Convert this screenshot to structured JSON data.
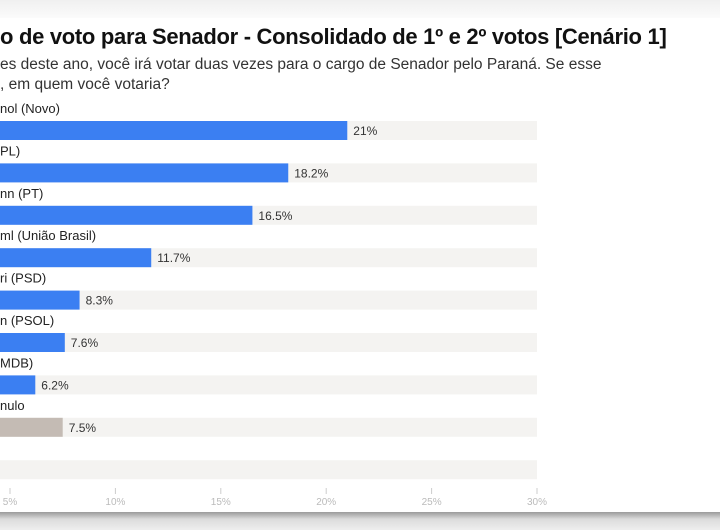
{
  "chart_data": {
    "type": "bar",
    "orientation": "horizontal",
    "title": "o de voto para Senador - Consolidado de 1º e 2º votos [Cenário 1]",
    "subtitle_lines": [
      "es deste ano, você irá votar duas vezes para o cargo de Senador pelo Paraná. Se esse",
      ", em quem você votaria?"
    ],
    "categories": [
      "nol (Novo)",
      "PL)",
      "nn (PT)",
      "ml (União Brasil)",
      "ri (PSD)",
      "n (PSOL)",
      "MDB)",
      "nulo",
      ""
    ],
    "values": [
      21,
      18.2,
      16.5,
      11.7,
      8.3,
      7.6,
      6.2,
      7.5,
      null
    ],
    "value_labels": [
      "21%",
      "18.2%",
      "16.5%",
      "11.7%",
      "8.3%",
      "7.6%",
      "6.2%",
      "7.5%",
      ""
    ],
    "bar_colors": [
      "#3b7ff2",
      "#3b7ff2",
      "#3b7ff2",
      "#3b7ff2",
      "#3b7ff2",
      "#3b7ff2",
      "#3b7ff2",
      "#c4bbb4",
      "#3b7ff2"
    ],
    "track_color": "#f4f3f1",
    "xlim": [
      0,
      30
    ],
    "xticks": [
      5,
      10,
      15,
      20,
      25,
      30
    ],
    "xtick_labels": [
      "5%",
      "10%",
      "15%",
      "20%",
      "25%",
      "30%"
    ],
    "grid": false
  }
}
